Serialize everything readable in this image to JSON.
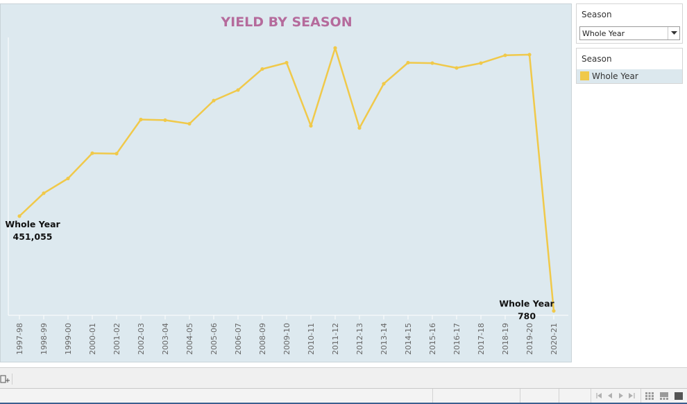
{
  "chart_data": {
    "type": "line",
    "title": "YIELD BY SEASON",
    "categories": [
      "1997-98",
      "1998-99",
      "1999-00",
      "2000-01",
      "2001-02",
      "2002-03",
      "2003-04",
      "2004-05",
      "2005-06",
      "2006-07",
      "2008-09",
      "2009-10",
      "2010-11",
      "2011-12",
      "2012-13",
      "2013-14",
      "2014-15",
      "2015-16",
      "2016-17",
      "2017-18",
      "2018-19",
      "2019-20",
      "2020-21"
    ],
    "series": [
      {
        "name": "Whole Year",
        "color": "#f0c94a",
        "values": [
          451055,
          560000,
          630000,
          750000,
          748000,
          910000,
          907000,
          890000,
          1000000,
          1050000,
          1150000,
          1180000,
          880000,
          1250000,
          870000,
          1080000,
          1180000,
          1178000,
          1155000,
          1178000,
          1215000,
          1218000,
          780
        ]
      }
    ],
    "annotations": [
      {
        "index": 0,
        "label": "Whole Year",
        "value": "451,055"
      },
      {
        "index": 22,
        "label": "Whole Year",
        "value": "780"
      }
    ],
    "ylim": [
      -20000,
      1300000
    ],
    "xlabel": "",
    "ylabel": "",
    "grid": false,
    "background": "#dde9ef",
    "title_color": "#b56b9c"
  },
  "filter": {
    "title": "Season",
    "selected": "Whole Year"
  },
  "legend": {
    "title": "Season",
    "items": [
      {
        "label": "Whole Year",
        "color": "#f0c94a"
      }
    ]
  }
}
